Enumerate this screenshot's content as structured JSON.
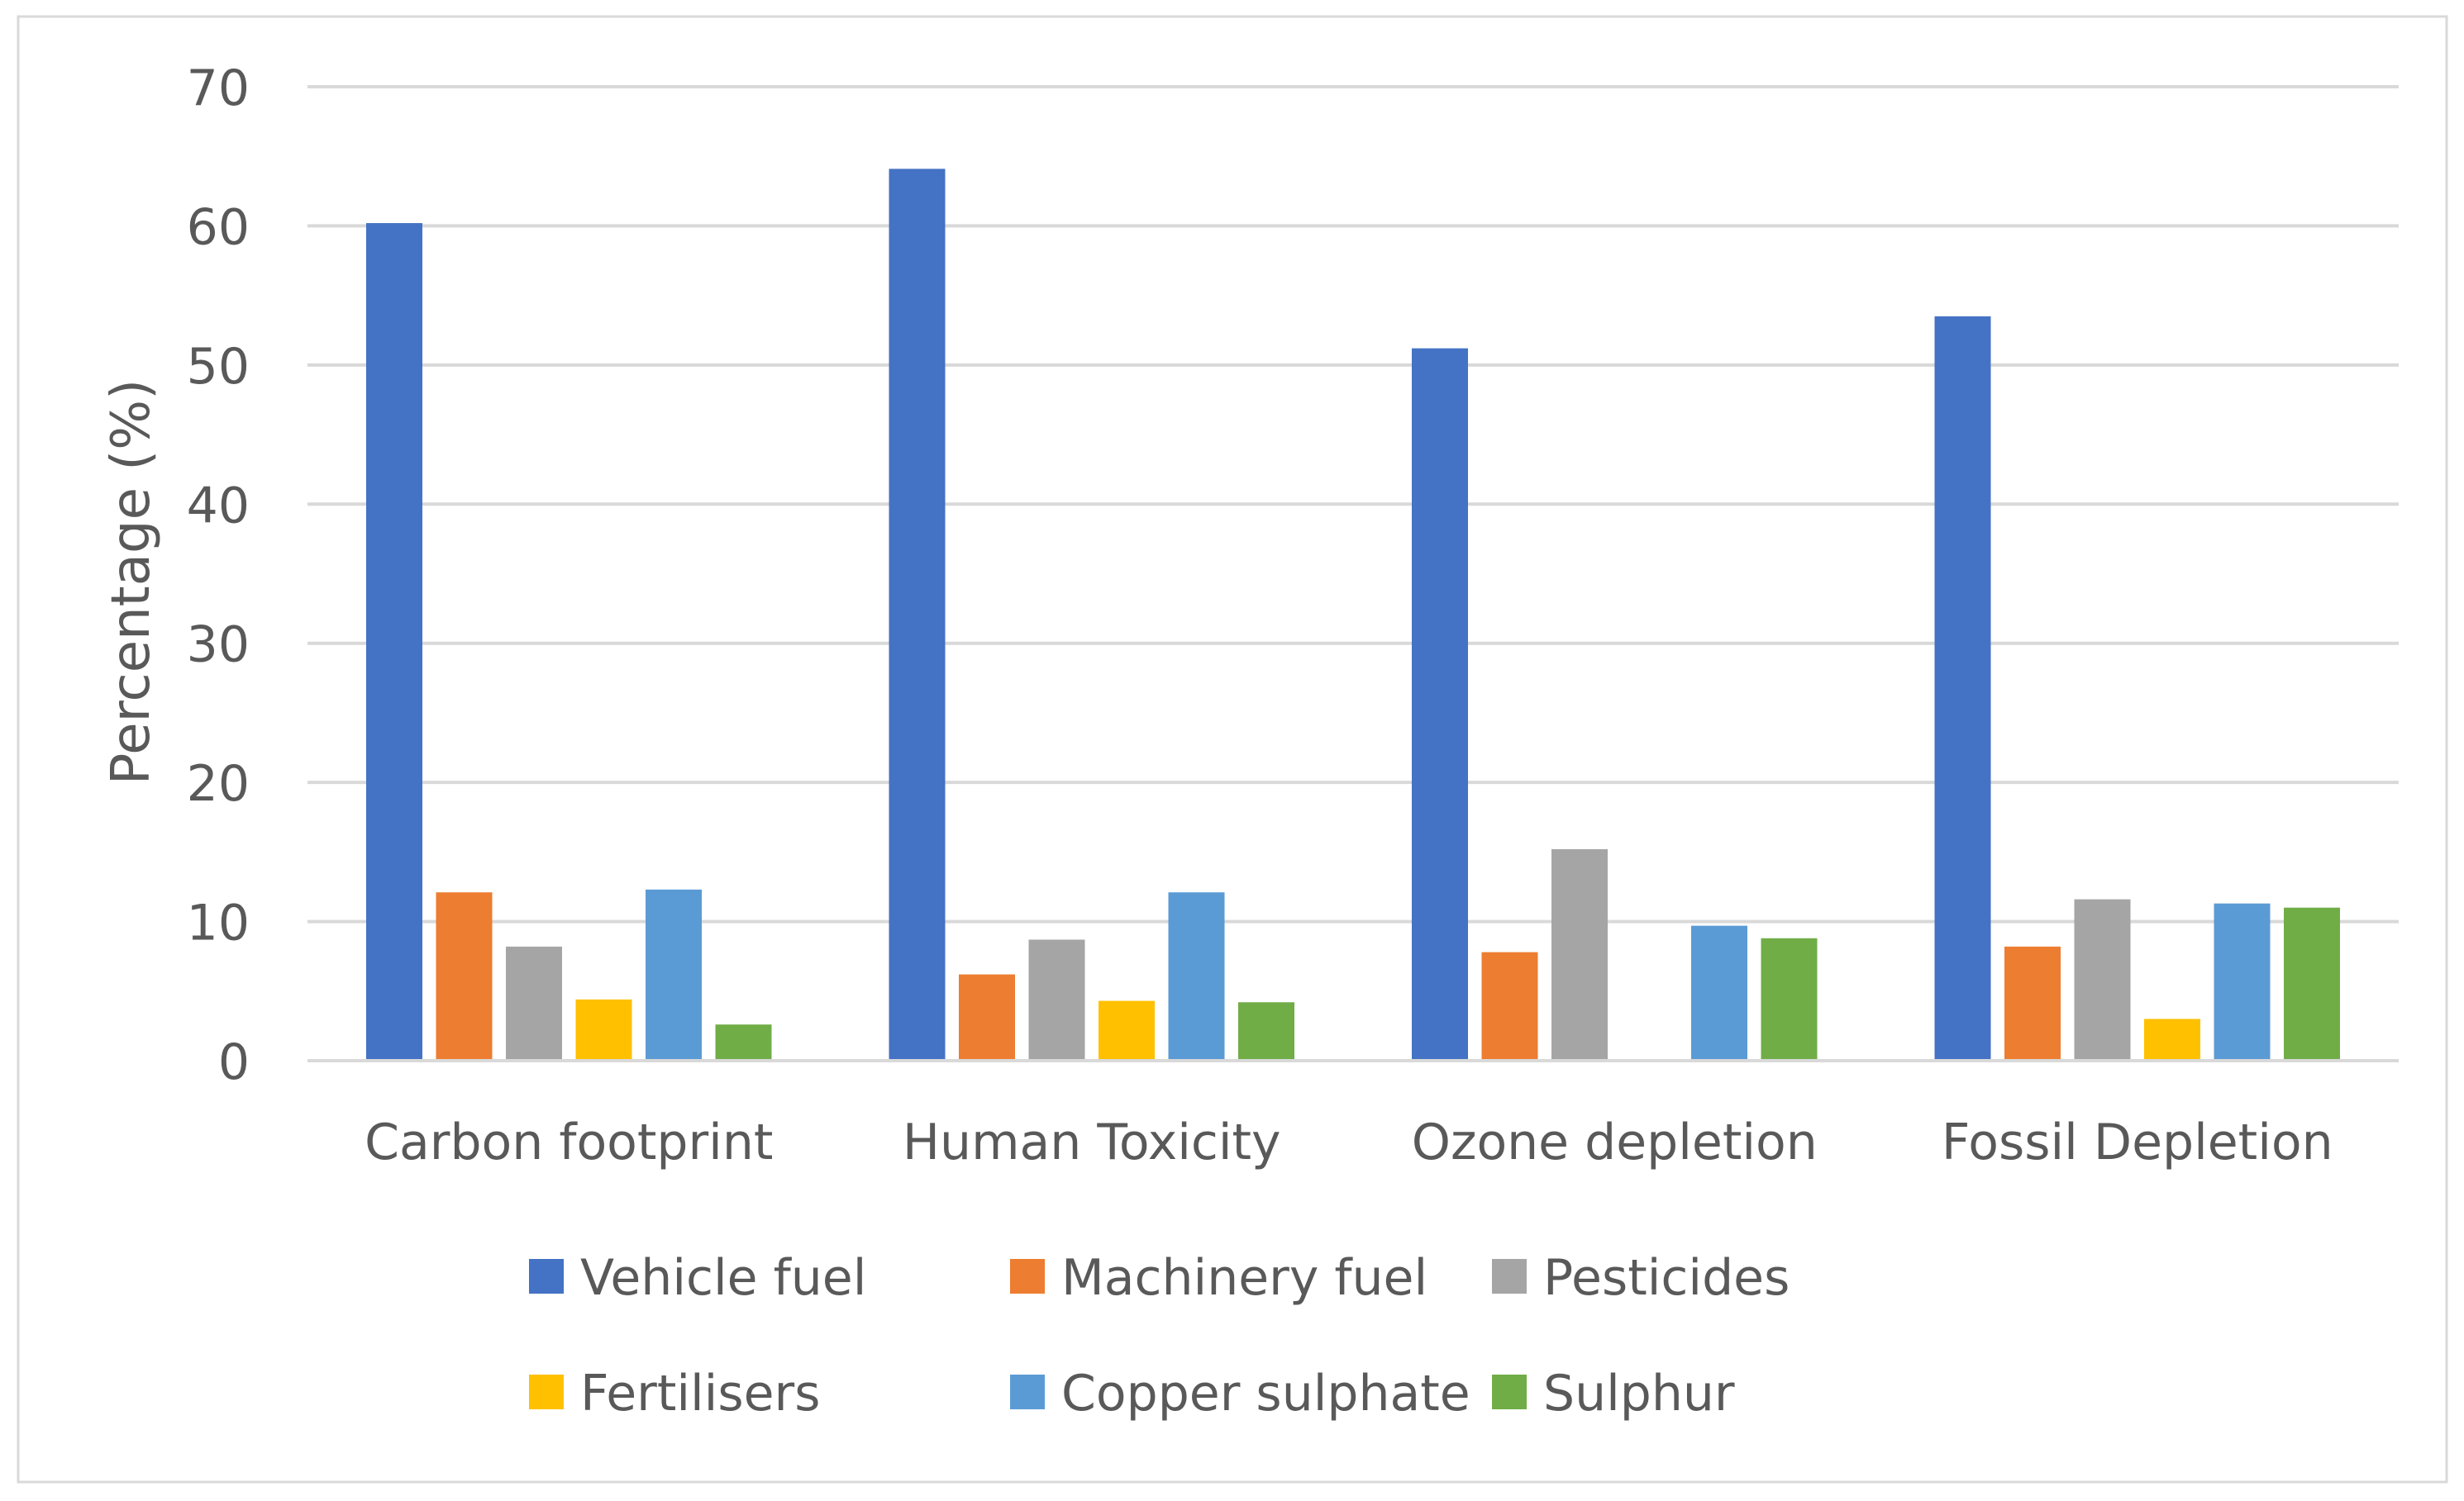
{
  "chart_data": {
    "type": "bar",
    "title": "",
    "xlabel": "",
    "ylabel": "Percentage (%)",
    "ylim": [
      0,
      70
    ],
    "yticks": [
      0,
      10,
      20,
      30,
      40,
      50,
      60,
      70
    ],
    "grid": true,
    "legend_position": "bottom",
    "categories": [
      "Carbon footprint",
      "Human Toxicity",
      "Ozone depletion",
      "Fossil Depletion"
    ],
    "series": [
      {
        "name": "Vehicle fuel",
        "color": "#4472C4",
        "values": [
          60.2,
          64.1,
          51.2,
          53.5
        ]
      },
      {
        "name": "Machinery fuel",
        "color": "#ED7D31",
        "values": [
          12.1,
          6.2,
          7.8,
          8.2
        ]
      },
      {
        "name": "Pesticides",
        "color": "#A5A5A5",
        "values": [
          8.2,
          8.7,
          15.2,
          11.6
        ]
      },
      {
        "name": "Fertilisers",
        "color": "#FFC000",
        "values": [
          4.4,
          4.3,
          0,
          3.0
        ]
      },
      {
        "name": "Copper sulphate",
        "color": "#5B9BD5",
        "values": [
          12.3,
          12.1,
          9.7,
          11.3
        ]
      },
      {
        "name": "Sulphur",
        "color": "#70AD47",
        "values": [
          2.6,
          4.2,
          8.8,
          11.0
        ]
      }
    ]
  }
}
